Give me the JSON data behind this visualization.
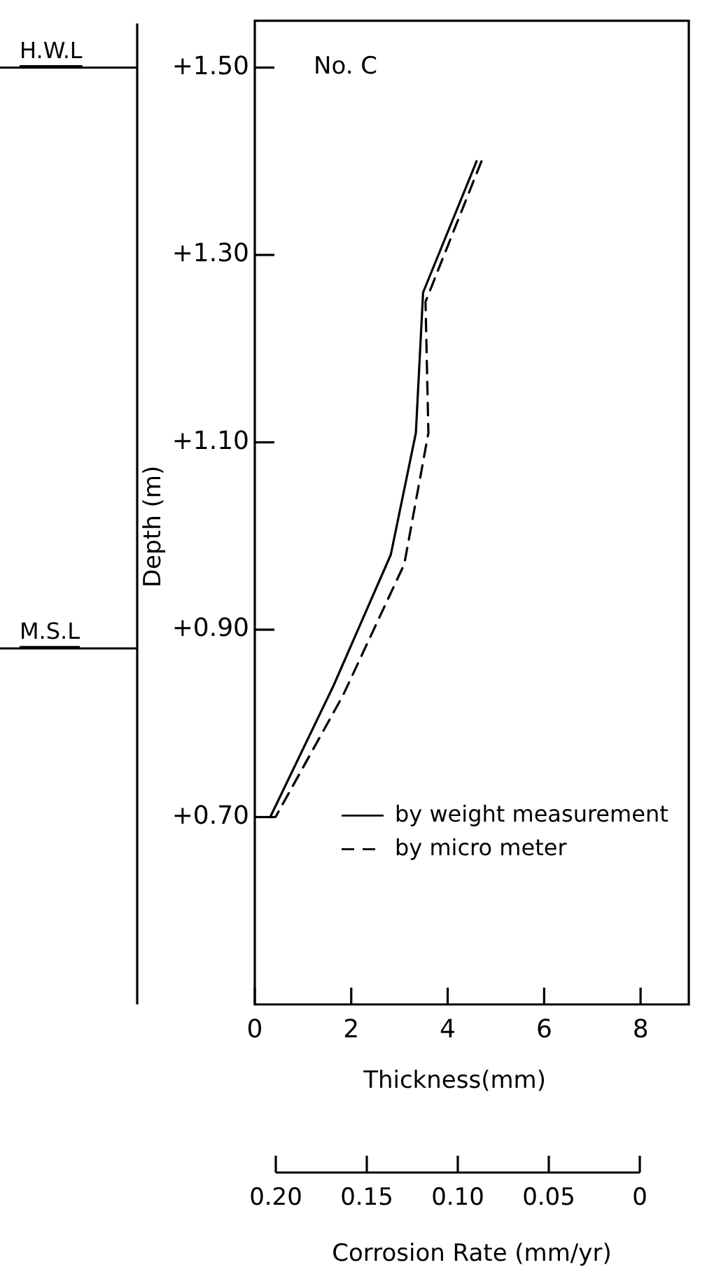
{
  "chart_data": {
    "type": "line",
    "title": "No. C",
    "xlabel": "Thickness(mm)",
    "ylabel": "Depth (m)",
    "x2label": "Corrosion Rate (mm/yr)",
    "xlim": [
      0,
      9
    ],
    "xticks": [
      0,
      2,
      4,
      6,
      8
    ],
    "ylim": [
      0.5,
      1.55
    ],
    "yticks": [
      {
        "value": 0.7,
        "label": "+0.70"
      },
      {
        "value": 0.9,
        "label": "+0.90"
      },
      {
        "value": 1.1,
        "label": "+1.10"
      },
      {
        "value": 1.3,
        "label": "+1.30"
      },
      {
        "value": 1.5,
        "label": "+1.50"
      }
    ],
    "x2lim": [
      0.2,
      0
    ],
    "x2ticks": [
      {
        "value": 0.2,
        "label": "0.20"
      },
      {
        "value": 0.15,
        "label": "0.15"
      },
      {
        "value": 0.1,
        "label": "0.10"
      },
      {
        "value": 0.05,
        "label": "0.05"
      },
      0
    ],
    "ref_lines": [
      {
        "axis": "y",
        "value": 1.5,
        "label": "H.W.L"
      },
      {
        "axis": "y",
        "value": 0.88,
        "label": "M.S.L"
      }
    ],
    "legend": "bottom right",
    "series": [
      {
        "name": "by weight measurement",
        "color": "#000000",
        "line_style": "solid",
        "x": [
          0.32,
          1.63,
          2.82,
          3.34,
          3.49,
          4.6
        ],
        "values": [
          0.7,
          0.84,
          0.98,
          1.11,
          1.26,
          1.4
        ]
      },
      {
        "name": "by micro meter",
        "color": "#000000",
        "line_style": "dashed",
        "x": [
          0.3,
          0.43,
          1.83,
          3.1,
          3.6,
          3.54,
          4.7
        ],
        "values": [
          0.7,
          0.7,
          0.83,
          0.97,
          1.11,
          1.25,
          1.4
        ]
      }
    ]
  }
}
